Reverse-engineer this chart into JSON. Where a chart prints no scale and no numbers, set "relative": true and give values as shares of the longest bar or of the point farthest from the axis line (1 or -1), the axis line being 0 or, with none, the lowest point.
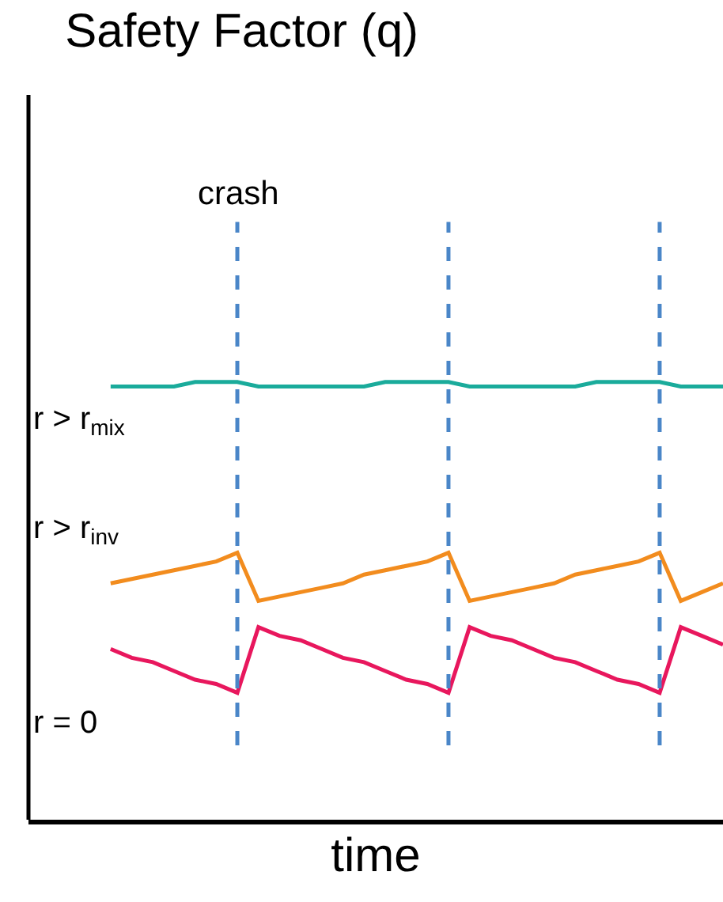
{
  "chart_data": {
    "type": "line",
    "title": "Safety Factor (q)",
    "xlabel": "time",
    "relative": true,
    "grid": "x",
    "legend": false,
    "marker": "none",
    "line_style": "solid",
    "categories": [
      null,
      null,
      null,
      null,
      null,
      null,
      null,
      null,
      null,
      null,
      null,
      null,
      null,
      null,
      null,
      null,
      null,
      null,
      null,
      null,
      null,
      null,
      null,
      null,
      null,
      null,
      null,
      null,
      null,
      null
    ],
    "series": [
      {
        "name": "r > r$_{mix}$",
        "color": "#1aab9b",
        "values": [
          0.99,
          0.99,
          0.99,
          0.99,
          1,
          1,
          1,
          0.99,
          0.99,
          0.99,
          0.99,
          0.99,
          0.99,
          1,
          1,
          1,
          1,
          0.99,
          0.99,
          0.99,
          0.99,
          0.99,
          0.99,
          1,
          1,
          1,
          1,
          0.99,
          0.99,
          0.99
        ]
      },
      {
        "name": "r > r$_{inv}$",
        "color": "#f28c1e",
        "values": [
          0.54,
          0.55,
          0.56,
          0.57,
          0.58,
          0.59,
          0.61,
          0.5,
          0.51,
          0.52,
          0.53,
          0.54,
          0.56,
          0.57,
          0.58,
          0.59,
          0.61,
          0.5,
          0.51,
          0.52,
          0.53,
          0.54,
          0.56,
          0.57,
          0.58,
          0.59,
          0.61,
          0.5,
          0.52,
          0.54
        ]
      },
      {
        "name": "r = 0",
        "color": "#e8175d",
        "values": [
          0.39,
          0.37,
          0.36,
          0.34,
          0.32,
          0.31,
          0.29,
          0.44,
          0.42,
          0.41,
          0.39,
          0.37,
          0.36,
          0.34,
          0.32,
          0.31,
          0.29,
          0.44,
          0.42,
          0.41,
          0.39,
          0.37,
          0.36,
          0.34,
          0.32,
          0.31,
          0.29,
          0.44,
          0.42,
          0.4
        ]
      }
    ],
    "annotations": [
      "crash"
    ]
  }
}
